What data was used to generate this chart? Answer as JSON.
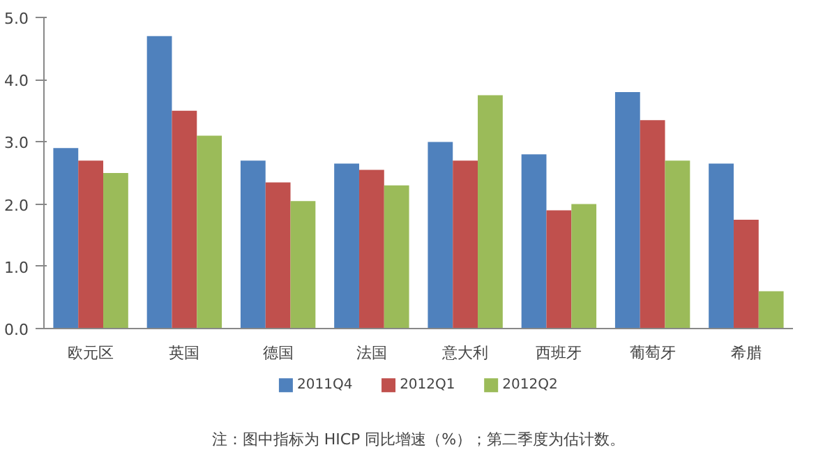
{
  "chart_data": {
    "type": "bar",
    "categories": [
      "欧元区",
      "英国",
      "德国",
      "法国",
      "意大利",
      "西班牙",
      "葡萄牙",
      "希腊"
    ],
    "series": [
      {
        "name": "2011Q4",
        "color": "#4f81bd",
        "values": [
          2.9,
          4.7,
          2.7,
          2.65,
          3.0,
          2.8,
          3.8,
          2.65
        ]
      },
      {
        "name": "2012Q1",
        "color": "#c0504d",
        "values": [
          2.7,
          3.5,
          2.35,
          2.55,
          2.7,
          1.9,
          3.35,
          1.75
        ]
      },
      {
        "name": "2012Q2",
        "color": "#9bbb59",
        "values": [
          2.5,
          3.1,
          2.05,
          2.3,
          3.75,
          2.0,
          2.7,
          0.6
        ]
      }
    ],
    "ylim": [
      0,
      5
    ],
    "yticks": [
      {
        "value": 0,
        "label": "0.0"
      },
      {
        "value": 1,
        "label": "1.0"
      },
      {
        "value": 2,
        "label": "2.0"
      },
      {
        "value": 3,
        "label": "3.0"
      },
      {
        "value": 4,
        "label": "4.0"
      },
      {
        "value": 5,
        "label": "5.0"
      }
    ],
    "grid": false,
    "legend": "bottom",
    "annotations": [
      "注：图中指标为 HICP 同比增速（%）；第二季度为估计数。"
    ]
  }
}
